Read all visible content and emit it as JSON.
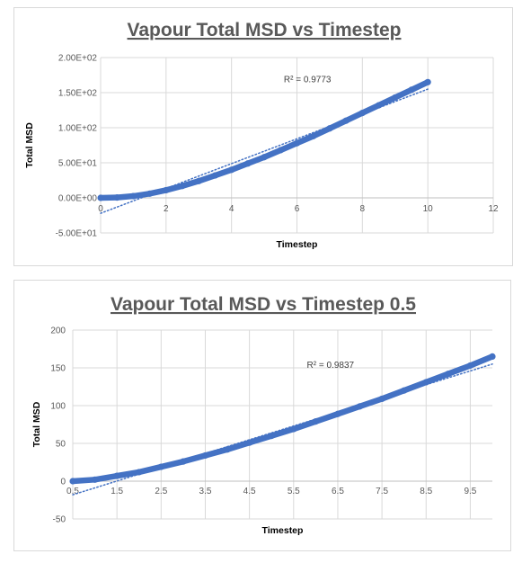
{
  "chart_data": [
    {
      "type": "scatter",
      "title": "Vapour Total MSD vs Timestep",
      "xlabel": "Timestep",
      "ylabel": "Total MSD",
      "xlim": [
        0,
        12
      ],
      "ylim": [
        -50,
        200
      ],
      "x_ticks": [
        0,
        2,
        4,
        6,
        8,
        10,
        12
      ],
      "x_tick_labels": [
        "0",
        "2",
        "4",
        "6",
        "8",
        "10",
        "12"
      ],
      "y_ticks": [
        -50,
        0,
        50,
        100,
        150,
        200
      ],
      "y_tick_labels": [
        "-5.00E+01",
        "0.00E+00",
        "5.00E+01",
        "1.00E+02",
        "1.50E+02",
        "2.00E+02"
      ],
      "grid": {
        "vertical": true,
        "horizontal": true
      },
      "series": [
        {
          "x": [
            0,
            0.5,
            1,
            1.5,
            2,
            2.5,
            3,
            3.5,
            4,
            4.5,
            5,
            5.5,
            6,
            6.5,
            7,
            7.5,
            8,
            8.5,
            9,
            9.5,
            10
          ],
          "y": [
            0,
            0.5,
            2.5,
            6,
            11,
            17,
            24,
            32,
            40,
            49,
            58,
            68,
            78,
            88,
            99,
            110,
            121,
            132,
            143,
            154,
            165
          ],
          "color": "#4472C4"
        }
      ],
      "trendline": {
        "type": "linear",
        "x": [
          0,
          10
        ],
        "y": [
          -22,
          155
        ],
        "color": "#4472C4",
        "style": "dotted"
      },
      "annotation": "R² = 0.9773",
      "annotation_at": {
        "x": 5.6,
        "y": 165
      }
    },
    {
      "type": "scatter",
      "title": "Vapour Total MSD vs Timestep 0.5",
      "xlabel": "Timestep",
      "ylabel": "Total MSD",
      "xlim": [
        0.5,
        10
      ],
      "ylim": [
        -50,
        200
      ],
      "x_ticks": [
        0.5,
        1.5,
        2.5,
        3.5,
        4.5,
        5.5,
        6.5,
        7.5,
        8.5,
        9.5
      ],
      "x_tick_labels": [
        "0.5",
        "1.5",
        "2.5",
        "3.5",
        "4.5",
        "5.5",
        "6.5",
        "7.5",
        "8.5",
        "9.5"
      ],
      "y_ticks": [
        -50,
        0,
        50,
        100,
        150,
        200
      ],
      "y_tick_labels": [
        "-50",
        "0",
        "50",
        "100",
        "150",
        "200"
      ],
      "grid": {
        "vertical": true,
        "horizontal": true
      },
      "series": [
        {
          "x": [
            0.5,
            1,
            1.5,
            2,
            2.5,
            3,
            3.5,
            4,
            4.5,
            5,
            5.5,
            6,
            6.5,
            7,
            7.5,
            8,
            8.5,
            9,
            9.5,
            10
          ],
          "y": [
            0,
            2,
            7,
            12,
            19,
            26,
            34,
            42,
            51,
            60,
            69,
            79,
            89,
            99,
            109,
            120,
            131,
            142,
            153,
            165
          ],
          "color": "#4472C4"
        }
      ],
      "trendline": {
        "type": "linear",
        "x": [
          0.5,
          10
        ],
        "y": [
          -18,
          155
        ],
        "color": "#4472C4",
        "style": "dotted"
      },
      "annotation": "R² = 0.9837",
      "annotation_at": {
        "x": 5.8,
        "y": 150
      }
    }
  ]
}
